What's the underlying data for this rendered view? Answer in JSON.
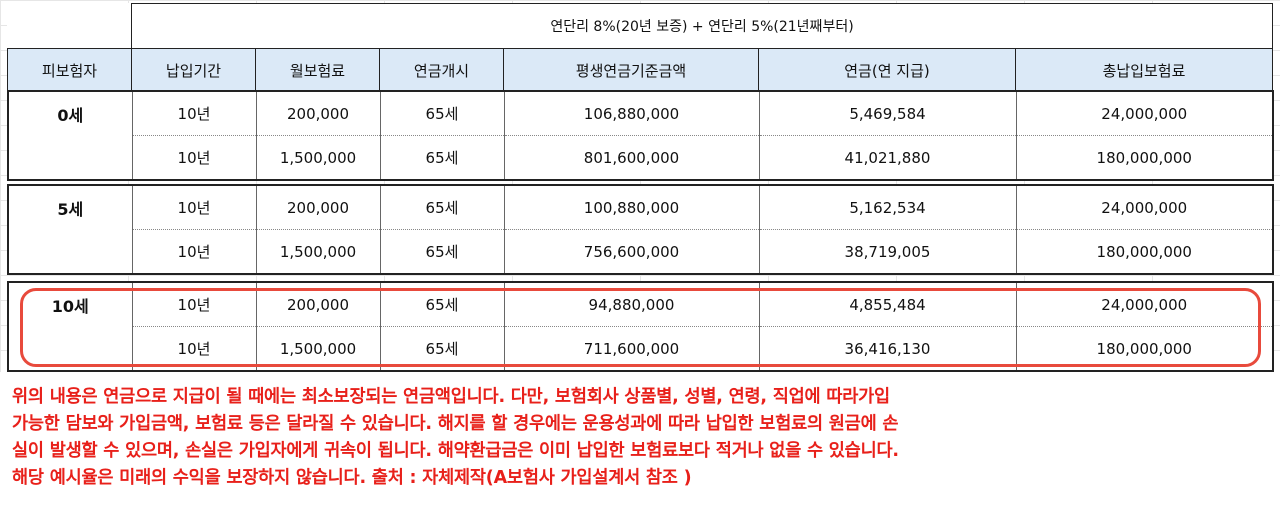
{
  "header": {
    "title": "연단리 8%(20년 보증) + 연단리 5%(21년째부터)",
    "columns": [
      "피보험자",
      "납입기간",
      "월보험료",
      "연금개시",
      "평생연금기준금액",
      "연금(연 지급)",
      "총납입보험료"
    ]
  },
  "groups": [
    {
      "age": "0세",
      "rows": [
        [
          "10년",
          "200,000",
          "65세",
          "106,880,000",
          "5,469,584",
          "24,000,000"
        ],
        [
          "10년",
          "1,500,000",
          "65세",
          "801,600,000",
          "41,021,880",
          "180,000,000"
        ]
      ]
    },
    {
      "age": "5세",
      "rows": [
        [
          "10년",
          "200,000",
          "65세",
          "100,880,000",
          "5,162,534",
          "24,000,000"
        ],
        [
          "10년",
          "1,500,000",
          "65세",
          "756,600,000",
          "38,719,005",
          "180,000,000"
        ]
      ]
    },
    {
      "age": "10세",
      "rows": [
        [
          "10년",
          "200,000",
          "65세",
          "94,880,000",
          "4,855,484",
          "24,000,000"
        ],
        [
          "10년",
          "1,500,000",
          "65세",
          "711,600,000",
          "36,416,130",
          "180,000,000"
        ]
      ]
    }
  ],
  "note": {
    "lines": [
      "위의 내용은 연금으로 지급이 될 때에는 최소보장되는 연금액입니다. 다만, 보험회사 상품별, 성별, 연령, 직업에 따라가입",
      "가능한 담보와 가입금액, 보험료 등은 달라질 수 있습니다. 해지를 할 경우에는 운용성과에 따라 납입한 보험료의 원금에 손",
      "실이 발생할 수 있으며, 손실은 가입자에게 귀속이 됩니다. 해약환급금은 이미 납입한 보험료보다 적거나 없을 수 있습니다.",
      "해당 예시율은 미래의 수익을 보장하지 않습니다. 출처 : 자체제작(A보험사 가입설계서 참조 )"
    ]
  },
  "colors": {
    "header_bg": "#dbe9f7",
    "highlight": "#e84a3c",
    "note_text": "#e8201a"
  }
}
